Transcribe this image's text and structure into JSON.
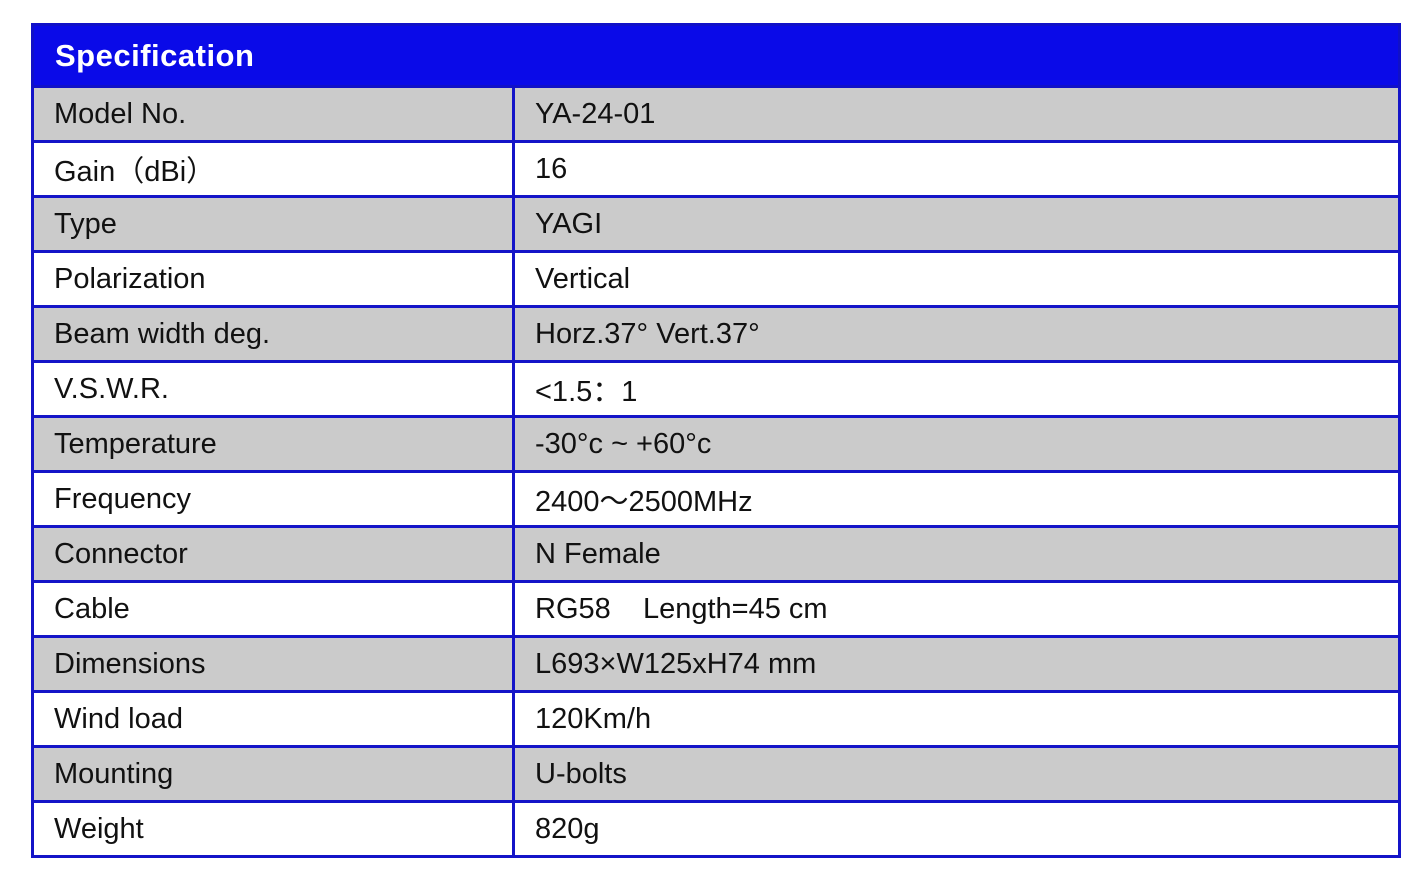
{
  "table": {
    "title": "Specification",
    "rows": [
      {
        "label": "Model No.",
        "value": "YA-24-01"
      },
      {
        "label": "Gain（dBi）",
        "value": "16"
      },
      {
        "label": "Type",
        "value": "YAGI"
      },
      {
        "label": "Polarization",
        "value": "Vertical"
      },
      {
        "label": "Beam width deg.",
        "value": "Horz.37° Vert.37°"
      },
      {
        "label": "V.S.W.R.",
        "value": "<1.5：1"
      },
      {
        "label": "Temperature",
        "value": "-30°c ~ +60°c"
      },
      {
        "label": "Frequency",
        "value": "2400～2500MHz"
      },
      {
        "label": "Connector",
        "value": "N Female"
      },
      {
        "label": "Cable",
        "value": "RG58    Length=45 cm"
      },
      {
        "label": "Dimensions",
        "value": "L693×W125xH74 mm"
      },
      {
        "label": "Wind load",
        "value": "120Km/h"
      },
      {
        "label": "Mounting",
        "value": "U-bolts"
      },
      {
        "label": "Weight",
        "value": "820g"
      }
    ]
  },
  "colors": {
    "header": "#0a0ae8",
    "border": "#1414c8",
    "shaded_row": "#cbcbcb"
  }
}
